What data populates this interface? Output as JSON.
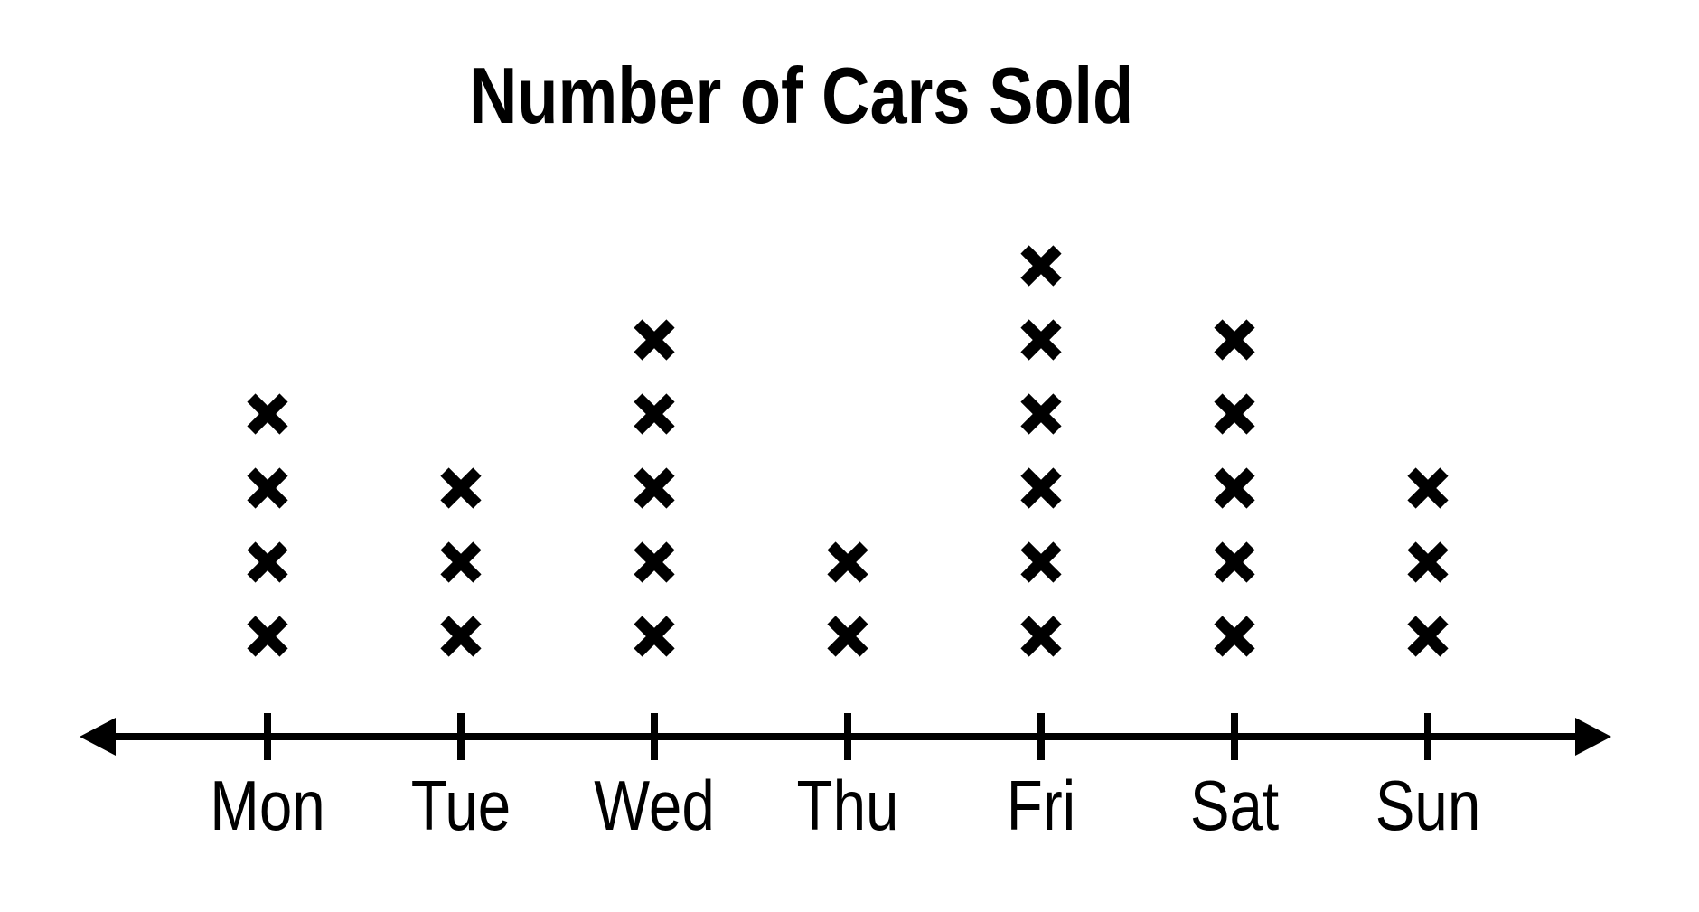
{
  "chart_data": {
    "type": "scatter",
    "variant": "dot-plot",
    "marker": "x",
    "title": "Number of Cars Sold",
    "categories": [
      "Mon",
      "Tue",
      "Wed",
      "Thu",
      "Fri",
      "Sat",
      "Sun"
    ],
    "values": [
      4,
      3,
      5,
      2,
      6,
      5,
      3
    ],
    "xlabel": "",
    "ylabel": "",
    "ylim": [
      0,
      6
    ],
    "grid": false,
    "legend": false,
    "axis": {
      "orientation": "horizontal",
      "arrows": "both-ends",
      "tick_count": 7
    },
    "colors": {
      "marker": "#000000",
      "axis": "#000000",
      "text": "#000000",
      "background": "#ffffff"
    }
  }
}
